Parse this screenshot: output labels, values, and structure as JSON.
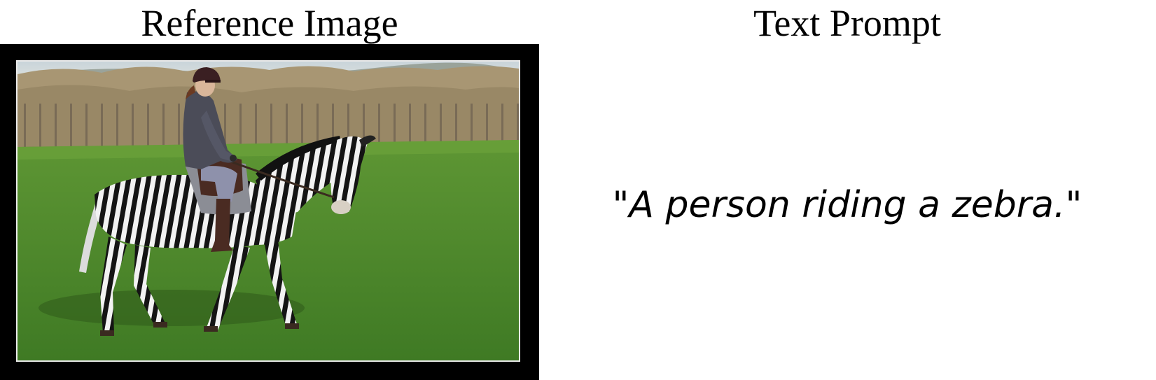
{
  "reference": {
    "heading": "Reference Image"
  },
  "prompt": {
    "heading": "Text Prompt",
    "text": "\"A person riding a zebra.\""
  },
  "colors": {
    "frame": "#000000",
    "grass": "#4f8a2c",
    "sky": "#cfd8dc",
    "trees": "#8a7a5c"
  }
}
